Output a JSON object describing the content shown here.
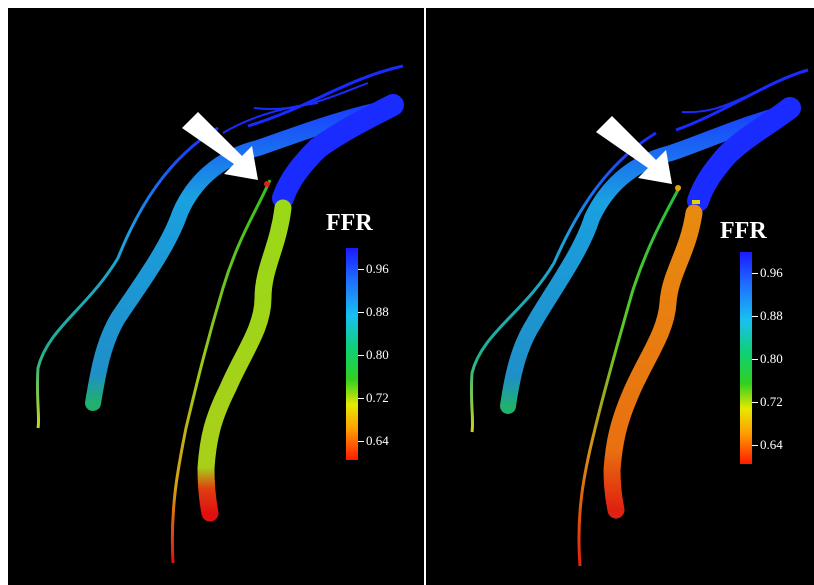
{
  "panels": [
    {
      "colorbar": {
        "title": "FFR",
        "ticks": [
          "0.96",
          "0.88",
          "0.80",
          "0.72",
          "0.64"
        ]
      }
    },
    {
      "colorbar": {
        "title": "FFR",
        "ticks": [
          "0.96",
          "0.88",
          "0.80",
          "0.72",
          "0.64"
        ]
      }
    }
  ],
  "colors": {
    "high": "#1a2bff",
    "mid_high": "#1aa0e0",
    "mid": "#20c040",
    "mid_low": "#c8d818",
    "low": "#e87010",
    "lowest": "#e01010",
    "arrow": "#ffffff",
    "background": "#000000"
  }
}
